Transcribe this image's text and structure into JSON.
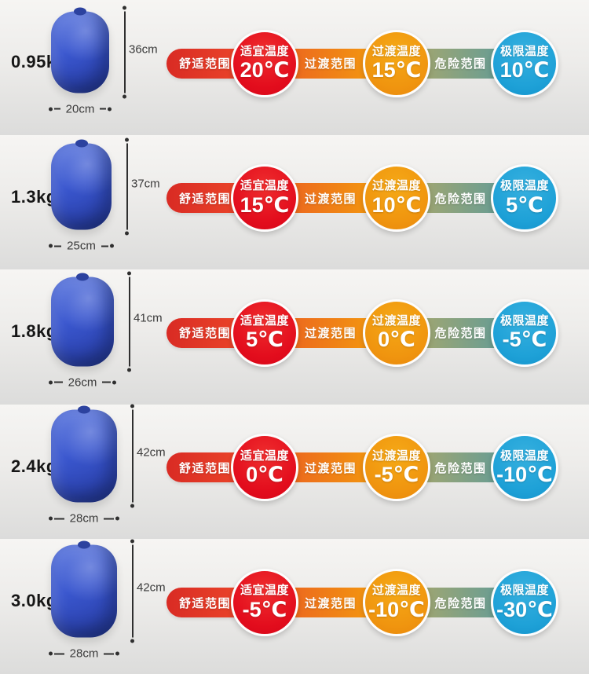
{
  "labels": {
    "comfort_range": "舒适范围",
    "comfort_temp": "适宜温度",
    "transition_range": "过渡范围",
    "transition_temp": "过渡温度",
    "danger_range": "危险范围",
    "extreme_temp": "极限温度"
  },
  "colors": {
    "comfort_red": "#e30d1d",
    "comfort_bar_red": "#e8392a",
    "transition_orange": "#f0950f",
    "transition_bar_orange_left": "#ea5a23",
    "transition_bar_orange_right": "#f5a40b",
    "danger_bar_khaki": "#b2a967",
    "danger_bar_teal": "#569a9e",
    "extreme_blue": "#1ea1d7",
    "bag_blue": "#3a57cf",
    "background_gray": "#e9e8e6"
  },
  "rows": [
    {
      "weight": "0.95kg",
      "bag_width": "20cm",
      "bag_height": "36cm",
      "comfort_temp": "20℃",
      "transition_temp": "15℃",
      "extreme_temp": "10℃",
      "bag_w": 74,
      "bag_h": 104
    },
    {
      "weight": "1.3kg",
      "bag_width": "25cm",
      "bag_height": "37cm",
      "comfort_temp": "15℃",
      "transition_temp": "10℃",
      "extreme_temp": "5℃",
      "bag_w": 77,
      "bag_h": 110
    },
    {
      "weight": "1.8kg",
      "bag_width": "26cm",
      "bag_height": "41cm",
      "comfort_temp": "5℃",
      "transition_temp": "0℃",
      "extreme_temp": "-5℃",
      "bag_w": 80,
      "bag_h": 114
    },
    {
      "weight": "2.4kg",
      "bag_width": "28cm",
      "bag_height": "42cm",
      "comfort_temp": "0℃",
      "transition_temp": "-5℃",
      "extreme_temp": "-10℃",
      "bag_w": 84,
      "bag_h": 118
    },
    {
      "weight": "3.0kg",
      "bag_width": "28cm",
      "bag_height": "42cm",
      "comfort_temp": "-5℃",
      "transition_temp": "-10℃",
      "extreme_temp": "-30℃",
      "bag_w": 84,
      "bag_h": 118
    }
  ]
}
